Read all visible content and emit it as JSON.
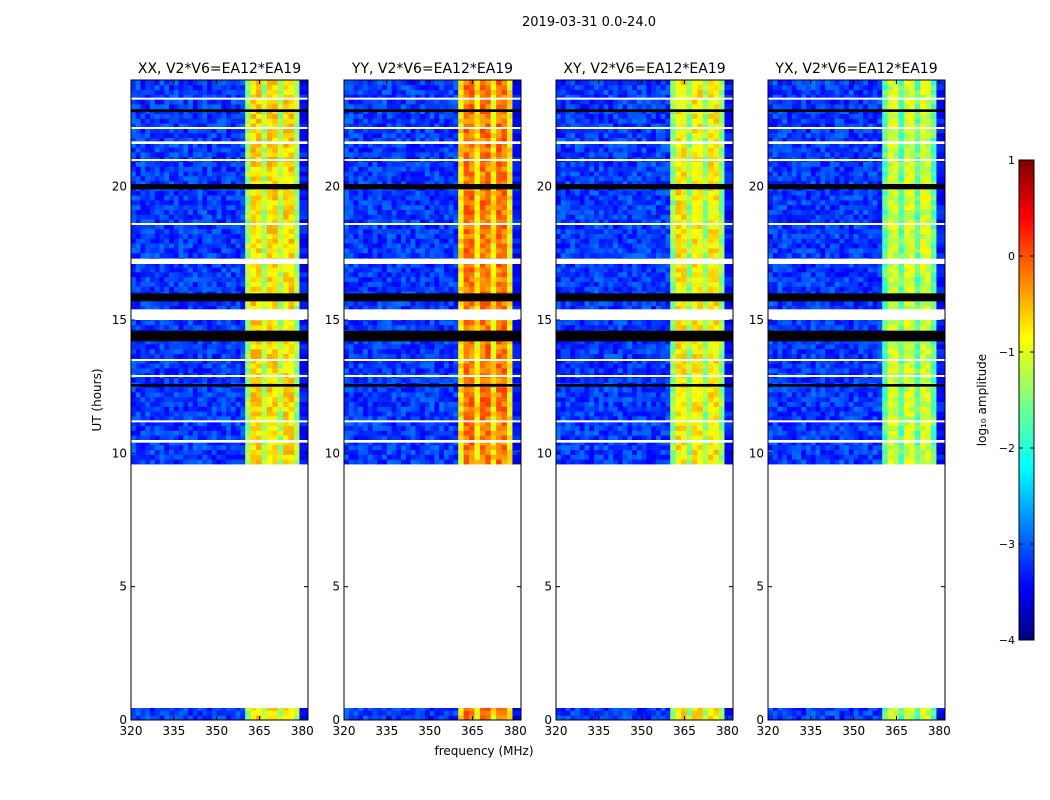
{
  "figure": {
    "suptitle": "2019-03-31 0.0-24.0",
    "xlabel": "frequency (MHz)",
    "ylabel": "UT (hours)",
    "colorbar_label": "log₁₀ amplitude"
  },
  "chart_data": {
    "type": "heatmap",
    "x_range": [
      320,
      382
    ],
    "y_range": [
      0,
      24
    ],
    "x_ticks": [
      320,
      335,
      350,
      365,
      380
    ],
    "y_ticks": [
      0,
      5,
      10,
      15,
      20
    ],
    "colorbar": {
      "range": [
        -4,
        1
      ],
      "ticks": [
        -4,
        -3,
        -2,
        -1,
        0,
        1
      ]
    },
    "colormap": "jet",
    "data_blocks": [
      {
        "ut_start": 0.0,
        "ut_end": 0.45
      },
      {
        "ut_start": 9.6,
        "ut_end": 24.0
      }
    ],
    "gaps_ut": [
      [
        14.2,
        14.6
      ],
      [
        15.0,
        15.4
      ],
      [
        15.7,
        16.0
      ],
      [
        17.1,
        17.3
      ],
      [
        19.9,
        20.1
      ],
      [
        10.4,
        10.5
      ],
      [
        12.5,
        12.6
      ],
      [
        21.6,
        21.7
      ],
      [
        22.8,
        22.9
      ]
    ],
    "band_edges_mhz": [
      360,
      379
    ],
    "panels": [
      {
        "title": "XX, V2*V6=EA12*EA19",
        "band_level": -0.7
      },
      {
        "title": "YY, V2*V6=EA12*EA19",
        "band_level": -0.2
      },
      {
        "title": "XY, V2*V6=EA12*EA19",
        "band_level": -0.8
      },
      {
        "title": "YX, V2*V6=EA12*EA19",
        "band_level": -1.1
      }
    ]
  }
}
